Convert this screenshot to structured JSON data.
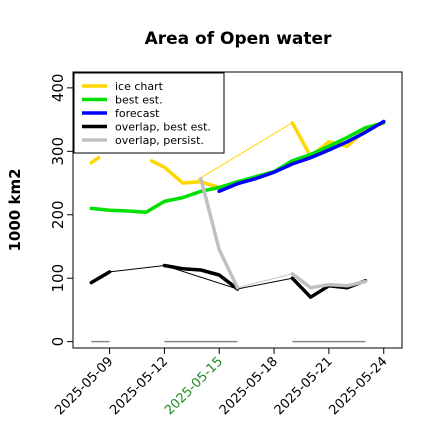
{
  "chart_data": {
    "type": "line",
    "title": "Area of Open water",
    "xlabel": "",
    "ylabel": "1000 km2",
    "xlim": [
      "2025-05-07",
      "2025-05-25"
    ],
    "ylim": [
      -10,
      425
    ],
    "yticks": [
      0,
      100,
      200,
      300,
      400
    ],
    "xticks": [
      {
        "date": "2025-05-09",
        "label": "2025-05-09",
        "color": "#000000"
      },
      {
        "date": "2025-05-12",
        "label": "2025-05-12",
        "color": "#000000"
      },
      {
        "date": "2025-05-15",
        "label": "2025-05-15",
        "color": "#228b22"
      },
      {
        "date": "2025-05-18",
        "label": "2025-05-18",
        "color": "#000000"
      },
      {
        "date": "2025-05-21",
        "label": "2025-05-21",
        "color": "#000000"
      },
      {
        "date": "2025-05-24",
        "label": "2025-05-24",
        "color": "#000000"
      }
    ],
    "legend_position": "top-left",
    "series": [
      {
        "name": "ice chart",
        "color": "#ffd700",
        "thin_connector": [
          {
            "x": "2025-05-13.8",
            "y": 255
          },
          {
            "x": "2025-05-19",
            "y": 345
          },
          {
            "x": "2025-05-20",
            "y": 292
          }
        ],
        "segments": [
          [
            {
              "x": "2025-05-08",
              "y": 282
            },
            {
              "x": "2025-05-08.4",
              "y": 290
            }
          ],
          [
            {
              "x": "2025-05-11.3",
              "y": 285
            },
            {
              "x": "2025-05-12",
              "y": 275
            },
            {
              "x": "2025-05-13",
              "y": 250
            },
            {
              "x": "2025-05-14",
              "y": 252
            },
            {
              "x": "2025-05-15",
              "y": 243
            },
            {
              "x": "2025-05-16",
              "y": 252
            }
          ],
          [
            {
              "x": "2025-05-19",
              "y": 345
            },
            {
              "x": "2025-05-20",
              "y": 292
            },
            {
              "x": "2025-05-21",
              "y": 315
            },
            {
              "x": "2025-05-22",
              "y": 308
            },
            {
              "x": "2025-05-23",
              "y": 333
            },
            {
              "x": "2025-05-24",
              "y": 345
            }
          ]
        ]
      },
      {
        "name": "best est.",
        "color": "#00e000",
        "points": [
          {
            "x": "2025-05-08",
            "y": 210
          },
          {
            "x": "2025-05-09",
            "y": 207
          },
          {
            "x": "2025-05-10",
            "y": 206
          },
          {
            "x": "2025-05-11",
            "y": 204
          },
          {
            "x": "2025-05-12",
            "y": 221
          },
          {
            "x": "2025-05-13",
            "y": 227
          },
          {
            "x": "2025-05-14",
            "y": 237
          },
          {
            "x": "2025-05-15",
            "y": 243
          },
          {
            "x": "2025-05-16",
            "y": 252
          },
          {
            "x": "2025-05-17",
            "y": 260
          },
          {
            "x": "2025-05-18",
            "y": 268
          },
          {
            "x": "2025-05-19",
            "y": 285
          },
          {
            "x": "2025-05-20",
            "y": 295
          },
          {
            "x": "2025-05-21",
            "y": 308
          },
          {
            "x": "2025-05-22",
            "y": 322
          },
          {
            "x": "2025-05-23",
            "y": 337
          },
          {
            "x": "2025-05-24",
            "y": 345
          }
        ]
      },
      {
        "name": "forecast",
        "color": "#0000ff",
        "points": [
          {
            "x": "2025-05-15",
            "y": 237
          },
          {
            "x": "2025-05-16",
            "y": 249
          },
          {
            "x": "2025-05-17",
            "y": 257
          },
          {
            "x": "2025-05-18",
            "y": 267
          },
          {
            "x": "2025-05-19",
            "y": 280
          },
          {
            "x": "2025-05-20",
            "y": 290
          },
          {
            "x": "2025-05-21",
            "y": 302
          },
          {
            "x": "2025-05-22",
            "y": 315
          },
          {
            "x": "2025-05-23",
            "y": 330
          },
          {
            "x": "2025-05-24",
            "y": 347
          }
        ]
      },
      {
        "name": "overlap, best est.",
        "color": "#000000",
        "thin_connector": [
          {
            "x": "2025-05-09",
            "y": 110
          },
          {
            "x": "2025-05-12",
            "y": 120
          },
          {
            "x": "2025-05-16",
            "y": 83
          },
          {
            "x": "2025-05-19",
            "y": 100
          }
        ],
        "segments": [
          [
            {
              "x": "2025-05-08",
              "y": 93
            },
            {
              "x": "2025-05-09",
              "y": 110
            }
          ],
          [
            {
              "x": "2025-05-12",
              "y": 120
            },
            {
              "x": "2025-05-13",
              "y": 115
            },
            {
              "x": "2025-05-14",
              "y": 113
            },
            {
              "x": "2025-05-15",
              "y": 105
            },
            {
              "x": "2025-05-16",
              "y": 83
            }
          ],
          [
            {
              "x": "2025-05-19",
              "y": 100
            },
            {
              "x": "2025-05-20",
              "y": 70
            },
            {
              "x": "2025-05-21",
              "y": 88
            },
            {
              "x": "2025-05-22",
              "y": 85
            },
            {
              "x": "2025-05-23",
              "y": 96
            }
          ]
        ]
      },
      {
        "name": "overlap, persist.",
        "color": "#c0c0c0",
        "thin_connector": [
          {
            "x": "2025-05-16",
            "y": 85
          },
          {
            "x": "2025-05-19",
            "y": 107
          }
        ],
        "segments": [
          [
            {
              "x": "2025-05-14",
              "y": 257
            },
            {
              "x": "2025-05-15",
              "y": 145
            },
            {
              "x": "2025-05-16",
              "y": 85
            }
          ],
          [
            {
              "x": "2025-05-19",
              "y": 107
            },
            {
              "x": "2025-05-20",
              "y": 85
            },
            {
              "x": "2025-05-21",
              "y": 90
            },
            {
              "x": "2025-05-22",
              "y": 88
            },
            {
              "x": "2025-05-23",
              "y": 95
            }
          ]
        ]
      }
    ],
    "baseline_gray_segments": [
      {
        "start": "2025-05-08",
        "end": "2025-05-09",
        "y": 0
      },
      {
        "start": "2025-05-12",
        "end": "2025-05-16",
        "y": 0
      },
      {
        "start": "2025-05-19",
        "end": "2025-05-23",
        "y": 0
      }
    ]
  }
}
